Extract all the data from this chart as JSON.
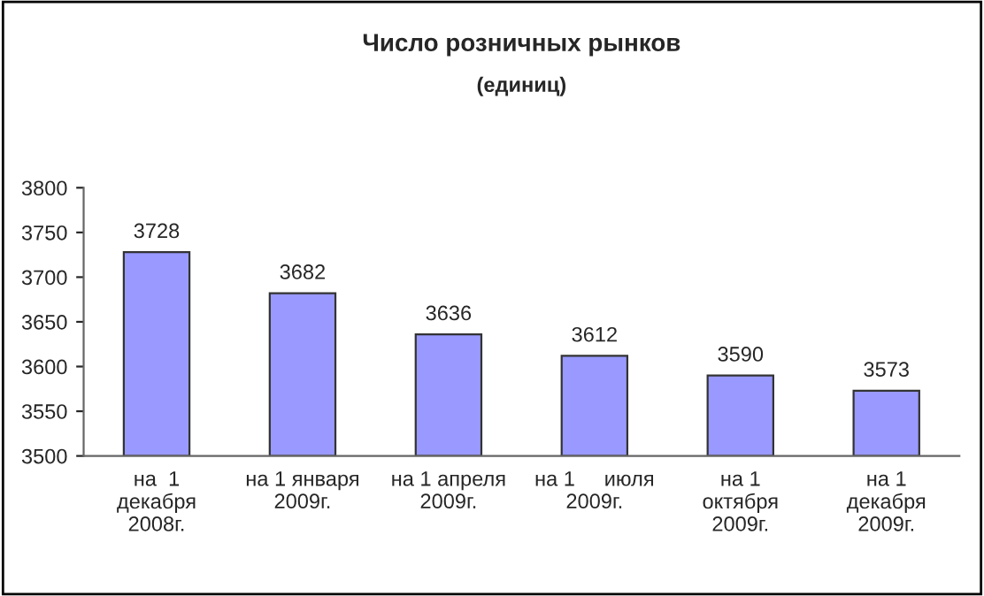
{
  "chart_data": {
    "type": "bar",
    "title": "Число розничных рынков",
    "subtitle": "(единиц)",
    "categories": [
      "на  1\nдекабря\n2008г.",
      "на 1 января\n2009г.",
      "на 1 апреля\n2009г.",
      "на 1     июля\n2009г.",
      "на 1\nоктября\n2009г.",
      "на 1\nдекабря\n2009г."
    ],
    "values": [
      3728,
      3682,
      3636,
      3612,
      3590,
      3573
    ],
    "color": "#9999ff",
    "ylim": [
      3500,
      3800
    ],
    "yticks": [
      3500,
      3550,
      3600,
      3650,
      3700,
      3750,
      3800
    ],
    "grid": false,
    "data_labels": true
  }
}
